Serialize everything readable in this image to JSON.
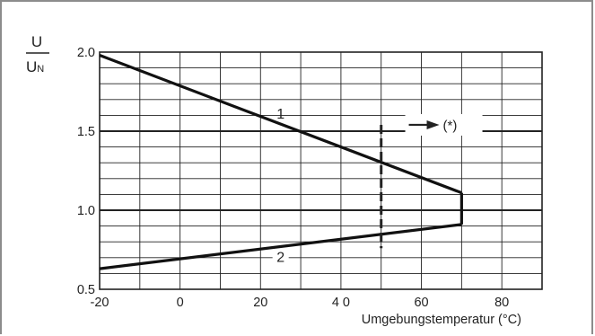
{
  "chart_data": {
    "type": "line",
    "ylabel_numerator": "U",
    "ylabel_denominator": "U",
    "ylabel_denominator_sub": "N",
    "xlabel": "Umgebungstemperatur (°C)",
    "xlim": [
      -20,
      90
    ],
    "ylim": [
      0.5,
      2.0
    ],
    "grid": true,
    "x_ticks": [
      {
        "value": -20,
        "label": "-20"
      },
      {
        "value": 0,
        "label": "0"
      },
      {
        "value": 20,
        "label": "20"
      },
      {
        "value": 40,
        "label": "4 0"
      },
      {
        "value": 60,
        "label": "60"
      },
      {
        "value": 80,
        "label": "80"
      }
    ],
    "y_ticks": [
      {
        "value": 2.0,
        "label": "2.0"
      },
      {
        "value": 1.5,
        "label": "1.5"
      },
      {
        "value": 1.0,
        "label": "1.0"
      },
      {
        "value": 0.5,
        "label": "0.5"
      }
    ],
    "series": [
      {
        "name": "1",
        "x": [
          -20,
          70
        ],
        "y": [
          1.98,
          1.11
        ]
      },
      {
        "name": "2",
        "x": [
          -20,
          70
        ],
        "y": [
          0.63,
          0.91
        ]
      }
    ],
    "vertical_segment": {
      "x": 70,
      "y": [
        0.91,
        1.11
      ]
    },
    "threshold_line": {
      "x": 50,
      "y_range": [
        0.76,
        1.54
      ],
      "style": "dashed"
    },
    "annotation": {
      "text": "(*)",
      "x": 60,
      "y": 1.54
    }
  }
}
